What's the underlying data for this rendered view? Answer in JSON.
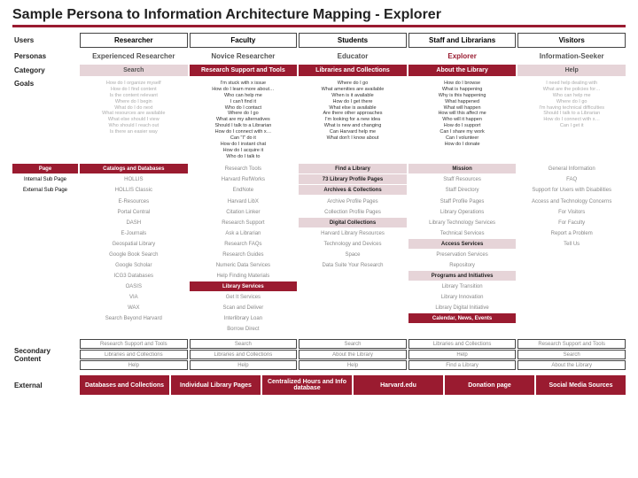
{
  "title": "Sample Persona to Information Architecture Mapping - Explorer",
  "colors": {
    "brand": "#9a1b30",
    "brand_light": "#e6d4d8",
    "text": "#222",
    "muted": "#888"
  },
  "rows": {
    "users_label": "Users",
    "personas_label": "Personas",
    "category_label": "Category",
    "goals_label": "Goals",
    "page_label": "Page",
    "internal_label": "Internal Sub Page",
    "external_sub_label": "External Sub Page",
    "secondary_label": "Secondary Content",
    "external_label": "External"
  },
  "users": [
    "Researcher",
    "Faculty",
    "Students",
    "Staff and Librarians",
    "Visitors"
  ],
  "personas": [
    "Experienced Researcher",
    "Novice Researcher",
    "Educator",
    "Explorer",
    "Information-Seeker"
  ],
  "categories": [
    "Search",
    "Research Support and Tools",
    "Libraries and Collections",
    "About the Library",
    "Help"
  ],
  "goals": [
    "How do I organize myself\nHow do I find content\nIs the content relevant\nWhere do I begin\nWhat do I do next\nWhat resources are available\nWhat else should I view\nWho should I reach out\nIs there an easier way",
    "I'm stuck with x issue\nHow do I learn more about…\nWho can help me\nI can't find it\nWho do I contact\nWhere do I go\nWhat are my alternatives\nShould I talk to a Librarian\nHow do I connect with x…\nCan \"I\" do it\nHow do I instant chat\nHow do I acquire it\nWho do I talk to",
    "Where do I go\nWhat amenities are available\nWhen is it available\nHow do I get there\nWhat else is available\nAre there other approaches\nI'm looking for a new idea\nWhat is new and changing\nCan Harvard help me\nWhat don't I know about",
    "How do I browse\nWhat is happening\nWhy is this happening\nWhat happened\nWhat will happen\nHow will this affect me\nWho will it happen\nHow do I support\nCan I share my work\nCan I volunteer\nHow do I donate",
    "I need help dealing with\nWhat are the policies for…\nWho can help me\nWhere do I go\nI'm having technical difficulties\nShould I talk to a Librarian\nHow do I connect with x…\nCan I get it"
  ],
  "page_row": [
    "Catalogs and Databases",
    "Research Tools",
    "Find a Library",
    "Mission",
    "General Information"
  ],
  "internal_row": [
    "HOLLIS",
    "Harvard RefWorks",
    "73 Library Profile Pages",
    "Staff Resources",
    "FAQ"
  ],
  "external_sub_row": [
    "HOLLIS Classic",
    "EndNote",
    "Archives & Collections",
    "Staff Directory",
    "Support for Users with Disabilities"
  ],
  "page_lines": [
    [
      "E-Resources",
      "Harvard LibX",
      "Archive Profile Pages",
      "Staff Profile Pages",
      "Access and Technology Concerns"
    ],
    [
      "Portal Central",
      "Citation Linker",
      "Collection Profile Pages",
      "Library Operations",
      "For Visitors"
    ],
    [
      "DASH",
      "Research Support",
      "Digital Collections",
      "Library Technology Services",
      "For Faculty"
    ],
    [
      "E-Journals",
      "Ask a Librarian",
      "Harvard Library Resources",
      "Technical Services",
      "Report a Problem"
    ],
    [
      "Geospatial Library",
      "Research FAQs",
      "Technology and Devices",
      "Access Services",
      "Tell Us"
    ],
    [
      "Google Book Search",
      "Research Guides",
      "Space",
      "Preservation Services",
      ""
    ],
    [
      "Google Scholar",
      "Numeric Data Services",
      "Data Suite Your Research",
      "Repository",
      ""
    ],
    [
      "ICG3 Databases",
      "Help Finding Materials",
      "",
      "Programs and Initiatives",
      ""
    ],
    [
      "OASIS",
      "Library Services",
      "",
      "Library Transition",
      ""
    ],
    [
      "VIA",
      "Get It Services",
      "",
      "Library Innovation",
      ""
    ],
    [
      "WAX",
      "Scan and Deliver",
      "",
      "Library Digital Initiative",
      ""
    ],
    [
      "Search Beyond Harvard",
      "Interlibrary Loan",
      "",
      "Calendar, News, Events",
      ""
    ],
    [
      "",
      "Borrow Direct",
      "",
      "",
      ""
    ]
  ],
  "page_styles": {
    "highlight_light": [
      [
        2,
        2
      ],
      [
        4,
        3
      ],
      [
        7,
        3
      ]
    ],
    "highlight_dark": [
      [
        8,
        1
      ],
      [
        11,
        3
      ]
    ]
  },
  "secondary": [
    [
      "Research Support and Tools",
      "Search",
      "Search",
      "Libraries and Collections",
      "Research Support and Tools"
    ],
    [
      "Libraries and Collections",
      "Libraries and Collections",
      "About the Library",
      "Help",
      "Search"
    ],
    [
      "Help",
      "Help",
      "Help",
      "Find a Library",
      "About the Library"
    ]
  ],
  "external": [
    "Databases and Collections",
    "Individual Library Pages",
    "Centralized Hours and Info database",
    "Harvard.edu",
    "Donation page",
    "Social Media Sources"
  ]
}
